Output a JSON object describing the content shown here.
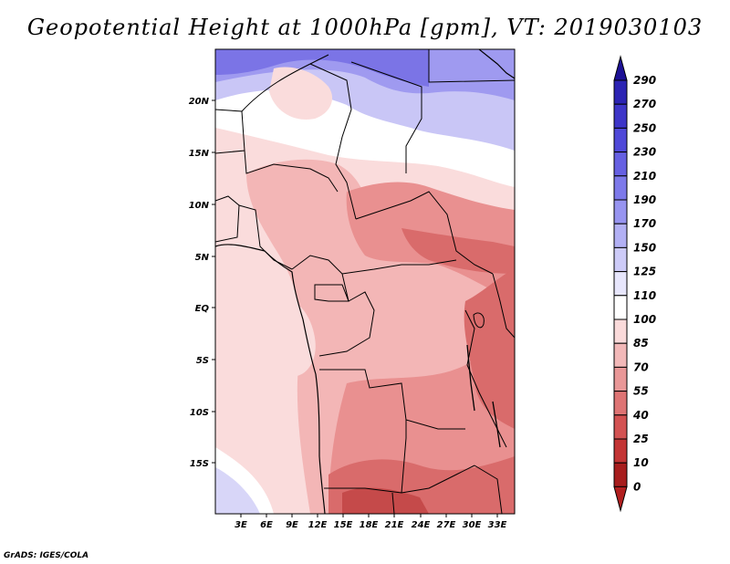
{
  "title": "Geopotential Height at 1000hPa [gpm], VT: 2019030103",
  "credit": "GrADS: IGES/COLA",
  "map": {
    "lat_labels": [
      "20N",
      "15N",
      "10N",
      "5N",
      "EQ",
      "5S",
      "10S",
      "15S"
    ],
    "lon_labels": [
      "3E",
      "6E",
      "9E",
      "12E",
      "15E",
      "18E",
      "21E",
      "24E",
      "27E",
      "30E",
      "33E"
    ],
    "colors": {
      "deep_blue": "#7b74e6",
      "light_blue": "#c9c6f6",
      "white": "#ffffff",
      "pink_light": "#fadcdc",
      "pink": "#f3b6b6",
      "salmon": "#e99090",
      "red": "#d96b6b",
      "dark_red": "#c54a4a"
    }
  },
  "colorbar": {
    "labels": [
      "290",
      "270",
      "250",
      "230",
      "210",
      "190",
      "170",
      "150",
      "125",
      "110",
      "100",
      "85",
      "70",
      "55",
      "40",
      "25",
      "10",
      "0"
    ],
    "colors": [
      "#1d1196",
      "#2b23b3",
      "#3d35c8",
      "#4f48d8",
      "#6660e2",
      "#7d79ea",
      "#9794f0",
      "#b2b0f4",
      "#cdcbf8",
      "#e7e6fc",
      "#ffffff",
      "#fadada",
      "#f2b8b8",
      "#e99797",
      "#de7474",
      "#d35252",
      "#c33434",
      "#a71d1d",
      "#b21f1f"
    ]
  }
}
